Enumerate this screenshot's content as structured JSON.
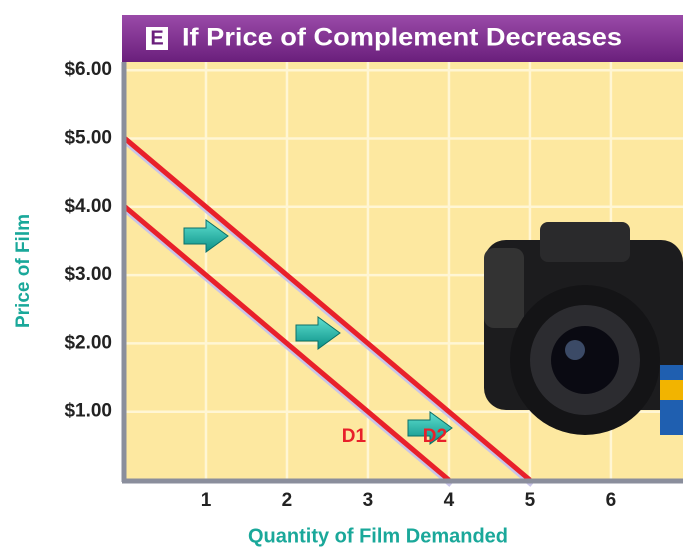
{
  "chart_data": {
    "type": "line",
    "panel_label": "E",
    "title": "If Price of Complement Decreases",
    "y_label": "Price of Film",
    "x_label": "Quantity of Film Demanded",
    "xlim": [
      0,
      6.89
    ],
    "ylim": [
      0,
      6.12
    ],
    "xticks": [
      1,
      2,
      3,
      4,
      5,
      6
    ],
    "yticks": [
      {
        "value": 1,
        "label": "$1.00"
      },
      {
        "value": 2,
        "label": "$2.00"
      },
      {
        "value": 3,
        "label": "$3.00"
      },
      {
        "value": 4,
        "label": "$4.00"
      },
      {
        "value": 5,
        "label": "$5.00"
      },
      {
        "value": 6,
        "label": "$6.00"
      }
    ],
    "grid": true,
    "series": [
      {
        "name": "D1",
        "color": "#e8202a",
        "x": [
          0,
          4
        ],
        "values": [
          4,
          0
        ]
      },
      {
        "name": "D2",
        "color": "#e8202a",
        "x": [
          0,
          5
        ],
        "values": [
          5,
          0
        ]
      }
    ]
  }
}
